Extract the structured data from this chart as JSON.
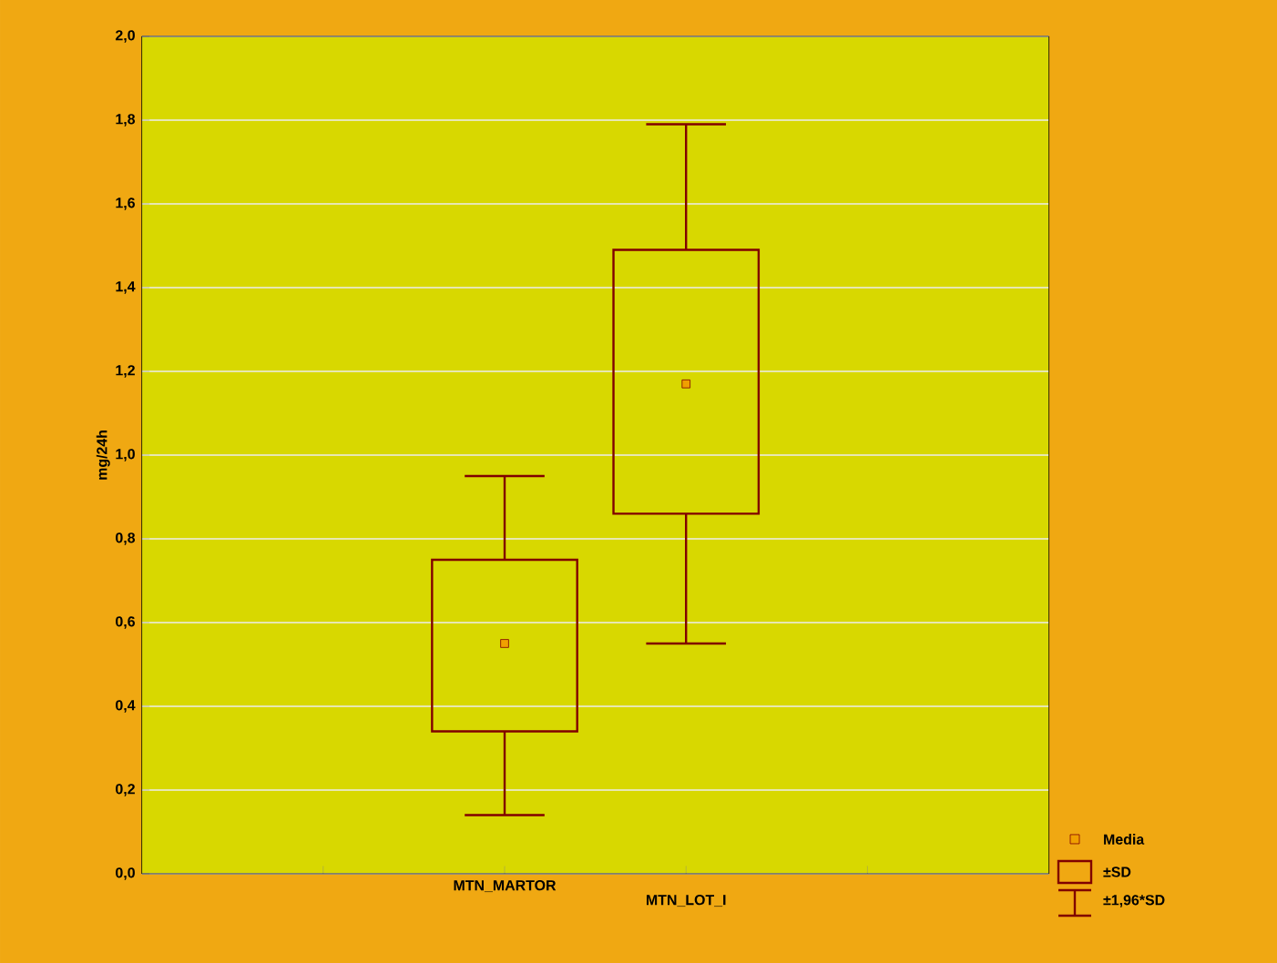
{
  "chart_data": {
    "type": "box",
    "ylabel": "mg/24h",
    "categories": [
      "MTN_MARTOR",
      "MTN_LOT_I"
    ],
    "series": [
      {
        "color": "#800000",
        "boxes": [
          {
            "low": 0.14,
            "q1": 0.34,
            "mean": 0.55,
            "q3": 0.75,
            "high": 0.95
          },
          {
            "low": 0.55,
            "q1": 0.86,
            "mean": 1.17,
            "q3": 1.49,
            "high": 1.79
          }
        ]
      }
    ],
    "ylim": [
      0,
      2
    ],
    "yticks": [
      {
        "value": 0,
        "label": "0,0"
      },
      {
        "value": 0.2,
        "label": "0,2"
      },
      {
        "value": 0.4,
        "label": "0,4"
      },
      {
        "value": 0.6,
        "label": "0,6"
      },
      {
        "value": 0.8,
        "label": "0,8"
      },
      {
        "value": 1.0,
        "label": "1,0"
      },
      {
        "value": 1.2,
        "label": "1,2"
      },
      {
        "value": 1.4,
        "label": "1,4"
      },
      {
        "value": 1.6,
        "label": "1,6"
      },
      {
        "value": 1.8,
        "label": "1,8"
      },
      {
        "value": 2.0,
        "label": "2,0"
      }
    ],
    "grid": "y",
    "marker": "square",
    "annotations": [
      "Media",
      "±SD",
      "±1,96*SD"
    ]
  }
}
